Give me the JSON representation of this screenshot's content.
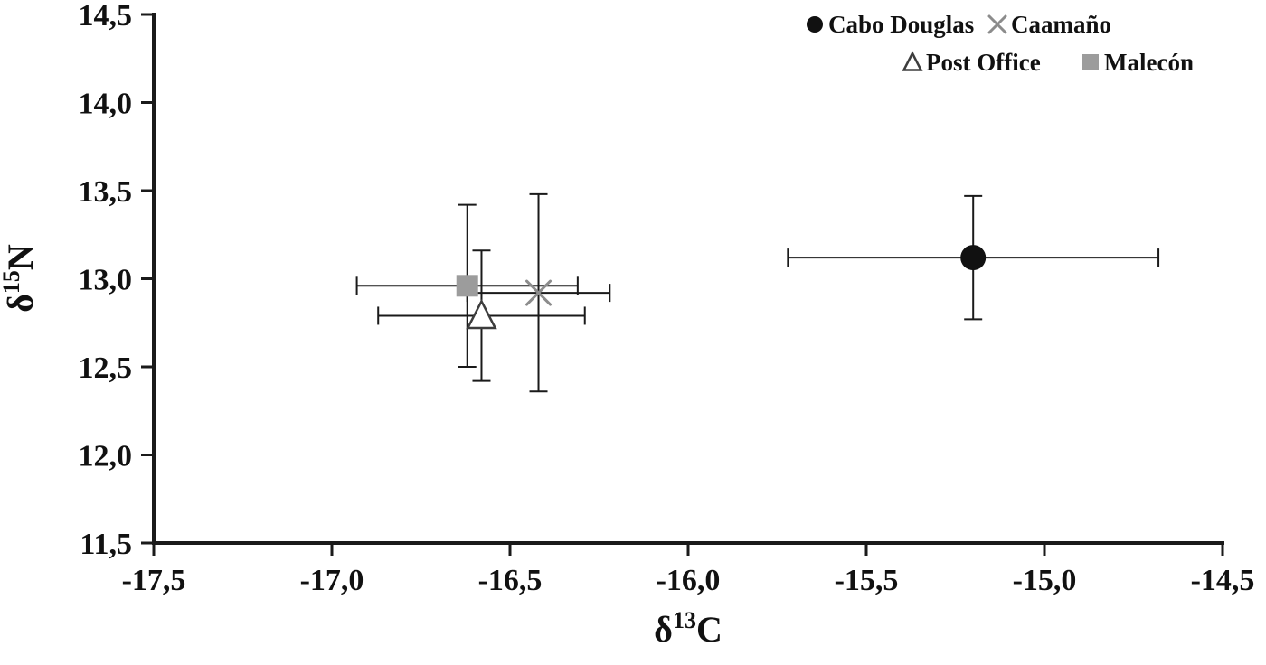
{
  "figure": {
    "background": "#ffffff",
    "axis_color": "#1a1a1a",
    "text_color": "#111111"
  },
  "chart_data": {
    "type": "scatter",
    "title": "",
    "xlabel": "δ13C",
    "ylabel": "δ15N",
    "xlabel_parts": {
      "base": "δ",
      "sup": "13",
      "rest": "C"
    },
    "ylabel_parts": {
      "base": "δ",
      "sup": "15",
      "rest": "N"
    },
    "xlim": [
      -17.5,
      -14.5
    ],
    "ylim": [
      11.5,
      14.5
    ],
    "x_ticks": [
      -17.5,
      -17.0,
      -16.5,
      -16.0,
      -15.5,
      -15.0,
      -14.5
    ],
    "y_ticks": [
      11.5,
      12.0,
      12.5,
      13.0,
      13.5,
      14.0,
      14.5
    ],
    "x_tick_labels": [
      "-17,5",
      "-17,0",
      "-16,5",
      "-16,0",
      "-15,5",
      "-15,0",
      "-14,5"
    ],
    "y_tick_labels": [
      "11,5",
      "12,0",
      "12,5",
      "13,0",
      "13,5",
      "14,0",
      "14,5"
    ],
    "decimal_separator": ",",
    "grid": false,
    "legend_position": "top-right",
    "error_bars": "x and y, capped",
    "series": [
      {
        "name": "Cabo Douglas",
        "marker": "circle-filled",
        "color": "#111111",
        "x": -15.2,
        "y": 13.12,
        "x_err": 0.52,
        "y_err": 0.35
      },
      {
        "name": "Caamaño",
        "marker": "x-cross",
        "color": "#8c8c8c",
        "x": -16.42,
        "y": 12.92,
        "x_err": 0.2,
        "y_err": 0.56
      },
      {
        "name": "Post Office",
        "marker": "triangle-open",
        "color": "#3d3d3d",
        "x": -16.58,
        "y": 12.79,
        "x_err": 0.29,
        "y_err": 0.37
      },
      {
        "name": "Malecón",
        "marker": "square-filled",
        "color": "#9c9c9c",
        "x": -16.62,
        "y": 12.96,
        "x_err": 0.31,
        "y_err": 0.46
      }
    ]
  }
}
